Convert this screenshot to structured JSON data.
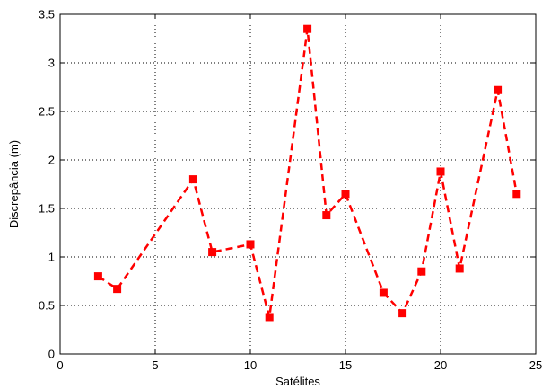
{
  "chart_data": {
    "type": "line",
    "title": "",
    "xlabel": "Satélites",
    "ylabel": "Discrepância (m)",
    "xlim": [
      0,
      25
    ],
    "ylim": [
      0,
      3.5
    ],
    "xticks": [
      "0",
      "5",
      "10",
      "15",
      "20",
      "25"
    ],
    "yticks": [
      "0",
      "0.5",
      "1",
      "1.5",
      "2",
      "2.5",
      "3",
      "3.5"
    ],
    "grid": true,
    "legend": "none",
    "series": [
      {
        "color": "#ff0000",
        "line_style": "dashed",
        "marker": "square",
        "x": [
          2,
          3,
          7,
          8,
          10,
          11,
          13,
          14,
          15,
          17,
          18,
          19,
          20,
          21,
          23,
          24
        ],
        "y": [
          0.8,
          0.67,
          1.8,
          1.05,
          1.13,
          0.38,
          3.35,
          1.43,
          1.65,
          0.63,
          0.42,
          0.85,
          1.88,
          0.88,
          2.72,
          1.65
        ]
      }
    ]
  }
}
